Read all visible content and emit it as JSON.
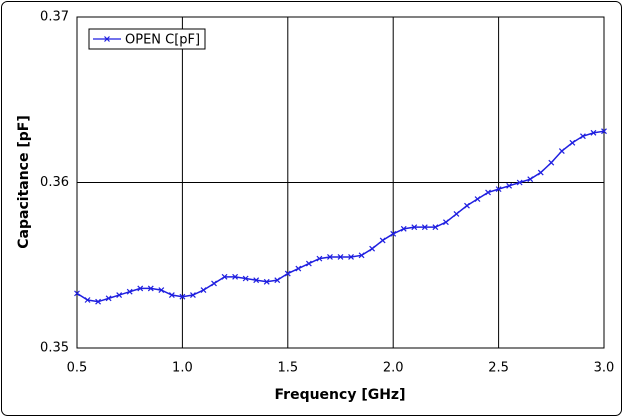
{
  "chart_data": {
    "type": "line",
    "xlabel": "Frequency [GHz]",
    "ylabel": "Capacitance [pF]",
    "x": [
      0.5,
      0.55,
      0.6,
      0.65,
      0.7,
      0.75,
      0.8,
      0.85,
      0.9,
      0.95,
      1.0,
      1.05,
      1.1,
      1.15,
      1.2,
      1.25,
      1.3,
      1.35,
      1.4,
      1.45,
      1.5,
      1.55,
      1.6,
      1.65,
      1.7,
      1.75,
      1.8,
      1.85,
      1.9,
      1.95,
      2.0,
      2.05,
      2.1,
      2.15,
      2.2,
      2.25,
      2.3,
      2.35,
      2.4,
      2.45,
      2.5,
      2.55,
      2.6,
      2.65,
      2.7,
      2.75,
      2.8,
      2.85,
      2.9,
      2.95,
      3.0
    ],
    "series": [
      {
        "name": "OPEN C[pF]",
        "color": "#1f1fe0",
        "values": [
          0.3533,
          0.3529,
          0.3528,
          0.353,
          0.3532,
          0.3534,
          0.3536,
          0.3536,
          0.3535,
          0.3532,
          0.3531,
          0.3532,
          0.3535,
          0.3539,
          0.3543,
          0.3543,
          0.3542,
          0.3541,
          0.354,
          0.3541,
          0.3545,
          0.3548,
          0.3551,
          0.3554,
          0.3555,
          0.3555,
          0.3555,
          0.3556,
          0.356,
          0.3565,
          0.3569,
          0.3572,
          0.3573,
          0.3573,
          0.3573,
          0.3576,
          0.3581,
          0.3586,
          0.359,
          0.3594,
          0.3596,
          0.3598,
          0.36,
          0.3602,
          0.3606,
          0.3612,
          0.3619,
          0.3624,
          0.3628,
          0.363,
          0.3631
        ]
      }
    ],
    "xlim": [
      0.5,
      3.0
    ],
    "xticks": [
      0.5,
      {
        "value": 1.0,
        "label": "1.0"
      },
      1.5,
      {
        "value": 2.0,
        "label": "2.0"
      },
      2.5,
      {
        "value": 3.0,
        "label": "3.0"
      }
    ],
    "ylim": [
      0.35,
      0.37
    ],
    "yticks": [
      0.35,
      0.36,
      0.37
    ],
    "grid": true,
    "legend": "upper left"
  }
}
